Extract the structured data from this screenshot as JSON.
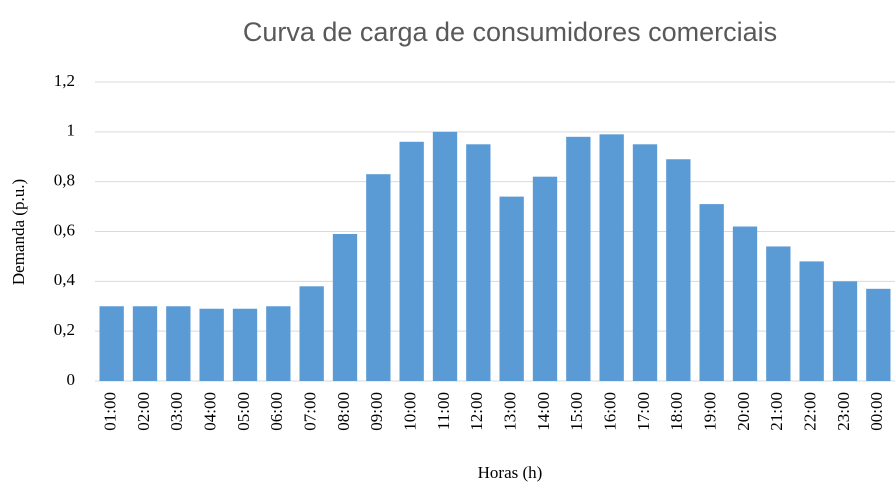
{
  "chart_data": {
    "type": "bar",
    "title": "Curva de carga de consumidores comerciais",
    "xlabel": "Horas (h)",
    "ylabel": "Demanda (p.u.)",
    "categories": [
      "01:00",
      "02:00",
      "03:00",
      "04:00",
      "05:00",
      "06:00",
      "07:00",
      "08:00",
      "09:00",
      "10:00",
      "11:00",
      "12:00",
      "13:00",
      "14:00",
      "15:00",
      "16:00",
      "17:00",
      "18:00",
      "19:00",
      "20:00",
      "21:00",
      "22:00",
      "23:00",
      "00:00"
    ],
    "values": [
      0.3,
      0.3,
      0.3,
      0.29,
      0.29,
      0.3,
      0.38,
      0.59,
      0.83,
      0.96,
      1.0,
      0.95,
      0.74,
      0.82,
      0.98,
      0.99,
      0.95,
      0.89,
      0.71,
      0.62,
      0.54,
      0.48,
      0.4,
      0.37
    ],
    "color": "#5b9bd5",
    "ylim": [
      0,
      1.2
    ],
    "yticks": [
      0,
      {
        "value": 0.2,
        "label": "0,2"
      },
      {
        "value": 0.4,
        "label": "0,4"
      },
      {
        "value": 0.6,
        "label": "0,6"
      },
      {
        "value": 0.8,
        "label": "0,8"
      },
      1,
      {
        "value": 1.2,
        "label": "1,2"
      }
    ],
    "grid": true
  }
}
